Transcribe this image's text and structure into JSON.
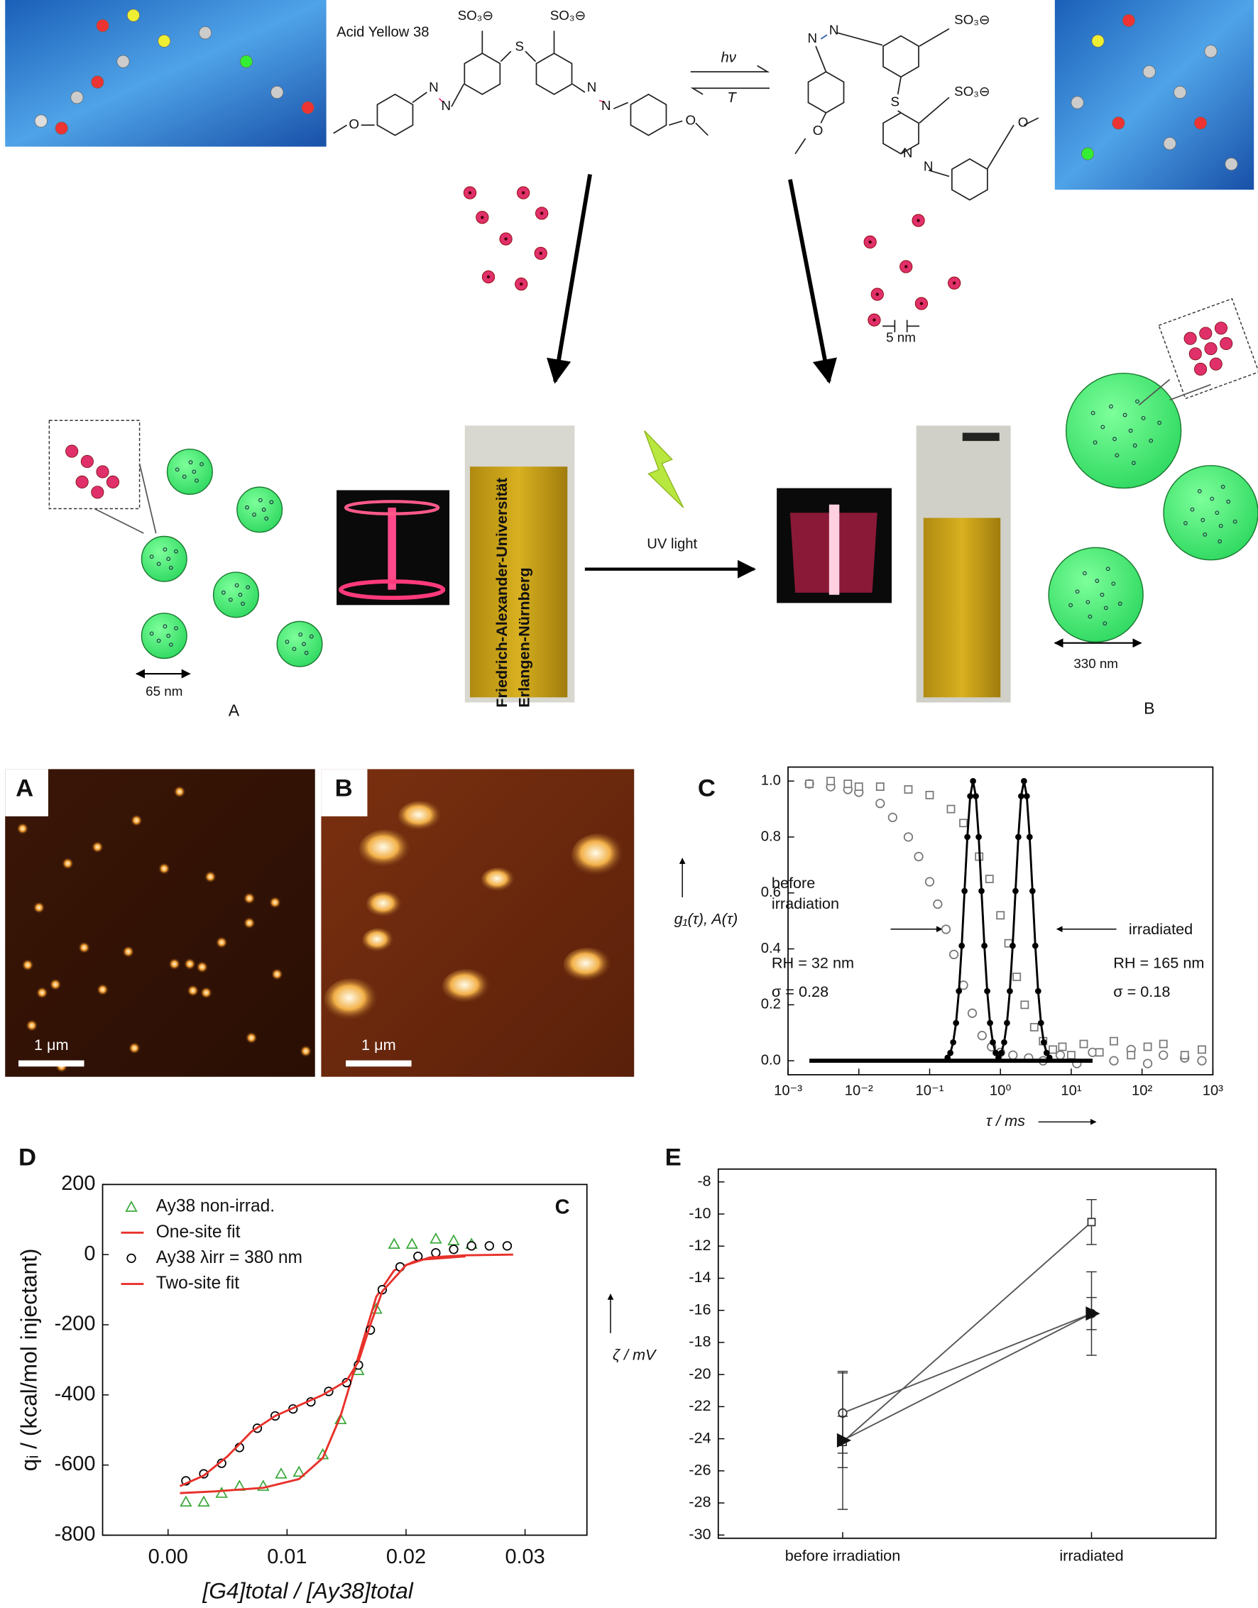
{
  "scheme": {
    "compound": "Acid Yellow 38",
    "forward": "hν",
    "reverse": "T",
    "left_atoms": [
      "SO₃⊖",
      "SO₃⊖",
      "S",
      "N",
      "N",
      "N",
      "N",
      "O",
      "O"
    ],
    "right_atoms": [
      "SO₃⊖",
      "SO₃⊖",
      "S",
      "N",
      "N",
      "N",
      "N",
      "O",
      "O"
    ],
    "size_small": "5 nm",
    "size_a": "65 nm",
    "size_b": "330 nm",
    "label_a": "A",
    "label_b": "B",
    "uv": "UV light",
    "vial_text": [
      "Friedrich-Alexander-Universität",
      "Erlangen-Nürnberg"
    ]
  },
  "afm": [
    {
      "label": "A",
      "scale": "1 μm"
    },
    {
      "label": "B",
      "scale": "1 μm"
    }
  ],
  "chart_data": [
    {
      "type": "scatter",
      "panel": "C",
      "x_label": "τ / ms",
      "y_label": "g₁(τ), A(τ)",
      "xscale": "log",
      "xlim": [
        0.001,
        1000
      ],
      "ylim": [
        -0.05,
        1.05
      ],
      "xticks": [
        {
          "value": 0.001,
          "label": "10⁻³"
        },
        {
          "value": 0.01,
          "label": "10⁻²"
        },
        {
          "value": 0.1,
          "label": "10⁻¹"
        },
        {
          "value": 1,
          "label": "10⁰"
        },
        {
          "value": 10,
          "label": "10¹"
        },
        {
          "value": 100,
          "label": "10²"
        },
        {
          "value": 1000,
          "label": "10³"
        }
      ],
      "yticks": [
        {
          "value": 0,
          "label": "0.0"
        },
        0.2,
        0.4,
        0.6,
        0.8,
        {
          "value": 1,
          "label": "1.0"
        }
      ],
      "annotations": [
        "before",
        "irradiation",
        "irradiated",
        "RH = 32 nm",
        "σ = 0.28",
        "RH = 165 nm",
        "σ = 0.18"
      ],
      "series": [
        {
          "color": "#777777",
          "marker": "circle",
          "filled": false,
          "x": [
            0.002,
            0.004,
            0.007,
            0.01,
            0.02,
            0.03,
            0.05,
            0.07,
            0.1,
            0.13,
            0.17,
            0.22,
            0.3,
            0.4,
            0.55,
            0.75,
            1,
            1.5,
            2.5,
            4,
            7,
            12,
            20,
            40,
            70,
            120,
            200,
            400,
            700
          ],
          "values": [
            0.99,
            0.98,
            0.97,
            0.96,
            0.92,
            0.87,
            0.8,
            0.73,
            0.64,
            0.56,
            0.47,
            0.38,
            0.27,
            0.17,
            0.09,
            0.05,
            0.03,
            0.02,
            0.01,
            0,
            0.02,
            -0.01,
            0.03,
            0,
            0.04,
            -0.01,
            0.02,
            0.01,
            0
          ]
        },
        {
          "color": "#777777",
          "marker": "square",
          "filled": false,
          "x": [
            0.002,
            0.004,
            0.007,
            0.01,
            0.02,
            0.05,
            0.1,
            0.2,
            0.3,
            0.5,
            0.7,
            1,
            1.3,
            1.7,
            2.2,
            3,
            4,
            5.5,
            7.5,
            10,
            15,
            25,
            40,
            70,
            120,
            200,
            400,
            700
          ],
          "values": [
            0.99,
            1,
            0.99,
            0.98,
            0.98,
            0.97,
            0.95,
            0.9,
            0.85,
            0.73,
            0.65,
            0.52,
            0.42,
            0.3,
            0.2,
            0.12,
            0.07,
            0.04,
            0.05,
            0.02,
            0.06,
            0.03,
            0.07,
            0.02,
            0.05,
            0.06,
            0.02,
            0.04
          ]
        },
        {
          "color": "#000000",
          "line": true,
          "line_width": 4,
          "x": [
            0.002,
            20
          ],
          "values": [
            0,
            0
          ]
        },
        {
          "color": "#000000",
          "marker": "circle",
          "filled": true,
          "line": true,
          "line_width": 2,
          "x": [
            0.179,
            0.196,
            0.215,
            0.236,
            0.259,
            0.284,
            0.311,
            0.341,
            0.374,
            0.41,
            0.449,
            0.493,
            0.54,
            0.593,
            0.65,
            0.713,
            0.781,
            0.856,
            0.939
          ],
          "values": [
            0.011,
            0.028,
            0.066,
            0.135,
            0.249,
            0.411,
            0.607,
            0.8,
            0.946,
            1,
            0.946,
            0.8,
            0.607,
            0.411,
            0.249,
            0.135,
            0.066,
            0.028,
            0.011
          ]
        },
        {
          "color": "#000000",
          "marker": "circle",
          "filled": true,
          "line": true,
          "line_width": 2,
          "x": [
            0.938,
            1.029,
            1.128,
            1.237,
            1.357,
            1.488,
            1.632,
            1.789,
            1.961,
            2.15,
            2.356,
            2.584,
            2.834,
            3.107,
            3.408,
            3.737,
            4.096,
            4.491,
            4.926
          ],
          "values": [
            0.011,
            0.028,
            0.066,
            0.135,
            0.249,
            0.411,
            0.607,
            0.8,
            0.946,
            1,
            0.946,
            0.8,
            0.607,
            0.411,
            0.249,
            0.135,
            0.066,
            0.028,
            0.011
          ]
        }
      ]
    },
    {
      "type": "scatter",
      "panel": "D",
      "x_label": "[G4]total / [Ay38]total",
      "y_label": "qᵢ / (kcal/mol injectant)",
      "xlim": [
        -0.0055,
        0.0352
      ],
      "ylim": [
        -800,
        200
      ],
      "xticks": [
        {
          "value": 0,
          "label": "0.00"
        },
        0.01,
        0.02,
        0.03
      ],
      "yticks": [
        -800,
        -600,
        -400,
        -200,
        0,
        200
      ],
      "legend": "upper left",
      "annotations": [
        "C"
      ],
      "series": [
        {
          "name": "Ay38 non-irrad.",
          "color": "#3aa83a",
          "marker": "triangle",
          "filled": false,
          "x": [
            0.0015,
            0.003,
            0.0045,
            0.006,
            0.008,
            0.0095,
            0.011,
            0.013,
            0.0145,
            0.016,
            0.0175,
            0.019,
            0.0205,
            0.0225,
            0.024,
            0.0255
          ],
          "values": [
            -705,
            -705,
            -680,
            -660,
            -660,
            -625,
            -620,
            -570,
            -470,
            -330,
            -155,
            30,
            30,
            45,
            40,
            30
          ]
        },
        {
          "name": "One-site fit",
          "color": "#e8302a",
          "line": true,
          "line_width": 2,
          "x": [
            0.001,
            0.004,
            0.008,
            0.011,
            0.013,
            0.0145,
            0.016,
            0.0175,
            0.019,
            0.021,
            0.025
          ],
          "values": [
            -680,
            -675,
            -665,
            -640,
            -580,
            -460,
            -290,
            -120,
            -45,
            -15,
            -5
          ]
        },
        {
          "name": "Ay38 λirr = 380 nm",
          "color": "#000000",
          "marker": "circle",
          "filled": false,
          "x": [
            0.0015,
            0.003,
            0.0045,
            0.006,
            0.0075,
            0.009,
            0.0105,
            0.012,
            0.0135,
            0.015,
            0.016,
            0.017,
            0.018,
            0.0195,
            0.021,
            0.0225,
            0.024,
            0.0255,
            0.027,
            0.0285
          ],
          "values": [
            -645,
            -625,
            -595,
            -550,
            -495,
            -460,
            -440,
            -420,
            -390,
            -365,
            -315,
            -215,
            -100,
            -35,
            -5,
            5,
            15,
            25,
            25,
            25
          ]
        },
        {
          "name": "Two-site fit",
          "color": "#e8302a",
          "line": true,
          "line_width": 2,
          "x": [
            0.001,
            0.003,
            0.005,
            0.007,
            0.009,
            0.011,
            0.013,
            0.015,
            0.016,
            0.017,
            0.018,
            0.02,
            0.022,
            0.025,
            0.029
          ],
          "values": [
            -660,
            -630,
            -575,
            -505,
            -460,
            -430,
            -400,
            -360,
            -305,
            -200,
            -105,
            -30,
            -8,
            -2,
            0
          ]
        }
      ]
    },
    {
      "type": "line",
      "panel": "E",
      "y_label": "ζ / mV",
      "categories": [
        "before irradiation",
        "irradiated"
      ],
      "ylim": [
        -30.2,
        -7.2
      ],
      "yticks": [
        -30,
        -28,
        -26,
        -24,
        -22,
        -20,
        -18,
        -16,
        -14,
        -12,
        -10,
        -8
      ],
      "series": [
        {
          "color": "#333333",
          "marker": "circle",
          "filled": false,
          "values": [
            -22.4,
            -16.2
          ],
          "errors": [
            2.5,
            2.6
          ]
        },
        {
          "color": "#333333",
          "marker": "square",
          "filled": false,
          "values": [
            -24.2,
            -10.5
          ],
          "errors": [
            1.6,
            1.4
          ]
        },
        {
          "color": "#111111",
          "marker": "triangle-right",
          "filled": true,
          "values": [
            -24.1,
            -16.2
          ],
          "errors": [
            4.3,
            1.0
          ]
        }
      ]
    }
  ]
}
